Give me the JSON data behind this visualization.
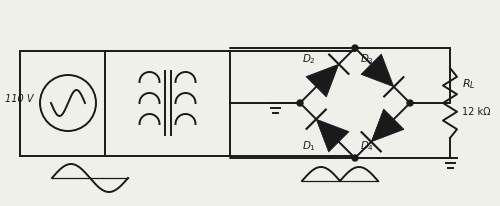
{
  "bg_color": "#f0f0eb",
  "line_color": "#1a1a1a",
  "line_width": 1.4,
  "voltage_label": "110 V",
  "resistor_value": "12 kΩ",
  "fig_width": 5.0,
  "fig_height": 2.07,
  "dpi": 100
}
